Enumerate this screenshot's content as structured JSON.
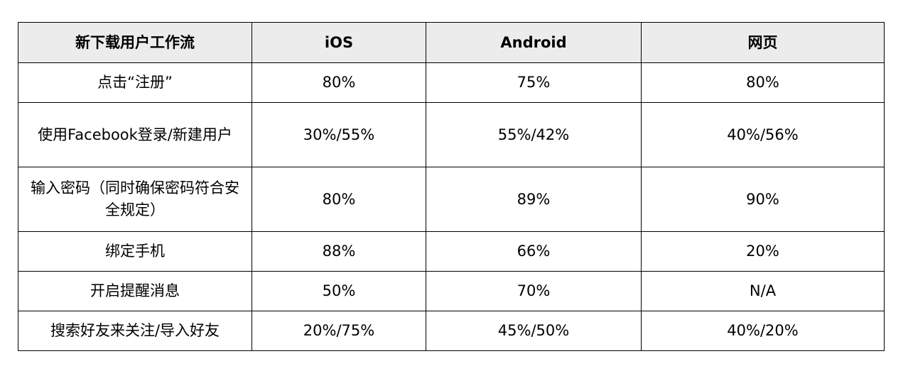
{
  "table": {
    "headers": [
      "新下载用户工作流",
      "iOS",
      "Android",
      "网页"
    ],
    "rows": [
      [
        "点击“注册”",
        "80%",
        "75%",
        "80%"
      ],
      [
        "使用Facebook登录/新建用户",
        "30%/55%",
        "55%/42%",
        "40%/56%"
      ],
      [
        "输入密码（同时确保密码符合安全规定）",
        "80%",
        "89%",
        "90%"
      ],
      [
        "绑定手机",
        "88%",
        "66%",
        "20%"
      ],
      [
        "开启提醒消息",
        "50%",
        "70%",
        "N/A"
      ],
      [
        "搜索好友来关注/导入好友",
        "20%/75%",
        "45%/50%",
        "40%/20%"
      ]
    ]
  }
}
